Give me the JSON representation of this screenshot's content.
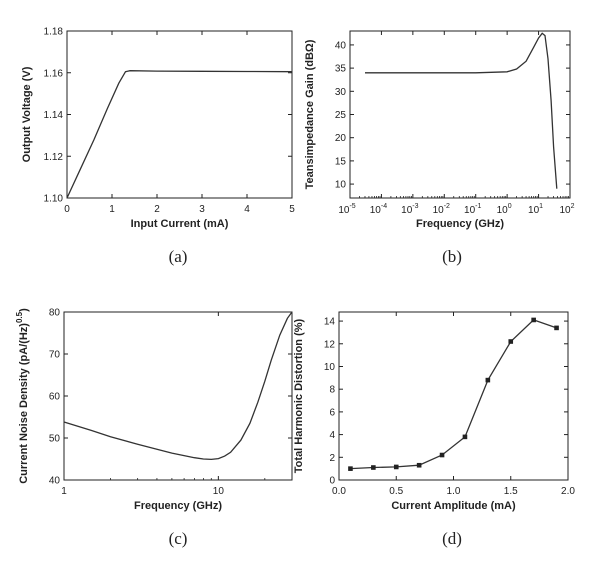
{
  "chart_data": [
    {
      "id": "a",
      "type": "line",
      "panel_label": "(a)",
      "xlabel": "Input Current (mA)",
      "ylabel": "Output Voltage (V)",
      "xlim": [
        0,
        5
      ],
      "ylim": [
        1.1,
        1.18
      ],
      "x_ticks": [
        0,
        1,
        2,
        3,
        4,
        5
      ],
      "x_tick_labels": [
        "0",
        "1",
        "2",
        "3",
        "4",
        "5"
      ],
      "y_ticks": [
        1.1,
        1.12,
        1.14,
        1.16,
        1.18
      ],
      "y_tick_labels": [
        "1.10",
        "1.12",
        "1.14",
        "1.16",
        "1.18"
      ],
      "x": [
        0,
        0.3,
        0.6,
        0.9,
        1.15,
        1.3,
        1.4,
        2.0,
        3.0,
        4.0,
        5.0
      ],
      "y": [
        1.1,
        1.114,
        1.128,
        1.143,
        1.155,
        1.1605,
        1.161,
        1.1608,
        1.1607,
        1.1606,
        1.1605
      ]
    },
    {
      "id": "b",
      "type": "line",
      "panel_label": "(b)",
      "xlabel": "Frequency (GHz)",
      "ylabel": "Teansimpedance Gain (dBΩ)",
      "xscale": "log",
      "xlim": [
        1e-05,
        100
      ],
      "ylim": [
        7,
        43
      ],
      "x_ticks": [
        1e-05,
        0.0001,
        0.001,
        0.01,
        0.1,
        1,
        10,
        100
      ],
      "x_tick_labels": [
        {
          "base": "10",
          "exp": "-5"
        },
        {
          "base": "10",
          "exp": "-4"
        },
        {
          "base": "10",
          "exp": "-3"
        },
        {
          "base": "10",
          "exp": "-2"
        },
        {
          "base": "10",
          "exp": "-1"
        },
        {
          "base": "10",
          "exp": "0"
        },
        {
          "base": "10",
          "exp": "1"
        },
        {
          "base": "10",
          "exp": "2"
        }
      ],
      "y_ticks": [
        10,
        15,
        20,
        25,
        30,
        35,
        40
      ],
      "y_tick_labels": [
        "10",
        "15",
        "20",
        "25",
        "30",
        "35",
        "40"
      ],
      "x": [
        3e-05,
        0.001,
        0.1,
        1,
        2,
        4,
        7,
        10,
        13,
        16,
        20,
        25,
        30,
        38
      ],
      "y": [
        34,
        34,
        34,
        34.2,
        34.8,
        36.5,
        39.5,
        41.5,
        42.5,
        42,
        37,
        28,
        18,
        9
      ]
    },
    {
      "id": "c",
      "type": "line",
      "panel_label": "(c)",
      "xlabel": "Frequency (GHz)",
      "ylabel": {
        "text": "Current Noise Density (pA/(Hz)",
        "sup": "0.5",
        "tail": ")"
      },
      "xscale": "log",
      "xlim": [
        1,
        30
      ],
      "ylim": [
        40,
        80
      ],
      "x_ticks": [
        1,
        10
      ],
      "x_tick_labels": [
        "1",
        "10"
      ],
      "y_ticks": [
        40,
        50,
        60,
        70,
        80
      ],
      "y_tick_labels": [
        "40",
        "50",
        "60",
        "70",
        "80"
      ],
      "x": [
        1,
        1.5,
        2,
        3,
        4,
        5,
        6,
        7,
        8,
        9,
        10,
        11,
        12,
        14,
        16,
        18,
        20,
        22,
        25,
        28,
        30
      ],
      "y": [
        53.8,
        51.8,
        50.3,
        48.5,
        47.3,
        46.4,
        45.8,
        45.3,
        45.0,
        44.9,
        45.1,
        45.7,
        46.6,
        49.5,
        53.5,
        58.5,
        63.5,
        68.5,
        74.5,
        78.5,
        80
      ]
    },
    {
      "id": "d",
      "type": "line",
      "panel_label": "(d)",
      "xlabel": "Current Amplitude (mA)",
      "ylabel": "Total Harmonic Distortion (%)",
      "xlim": [
        0,
        2.0
      ],
      "ylim": [
        0,
        14.8
      ],
      "x_ticks": [
        0,
        0.5,
        1.0,
        1.5,
        2.0
      ],
      "x_tick_labels": [
        "0.0",
        "0.5",
        "1.0",
        "1.5",
        "2.0"
      ],
      "y_ticks": [
        0,
        2,
        4,
        6,
        8,
        10,
        12,
        14
      ],
      "y_tick_labels": [
        "0",
        "2",
        "4",
        "6",
        "8",
        "10",
        "12",
        "14"
      ],
      "markers": "square",
      "x": [
        0.1,
        0.3,
        0.5,
        0.7,
        0.9,
        1.1,
        1.3,
        1.5,
        1.7,
        1.9
      ],
      "y": [
        1.0,
        1.1,
        1.15,
        1.3,
        2.2,
        3.8,
        8.8,
        12.2,
        14.1,
        13.4
      ]
    }
  ]
}
